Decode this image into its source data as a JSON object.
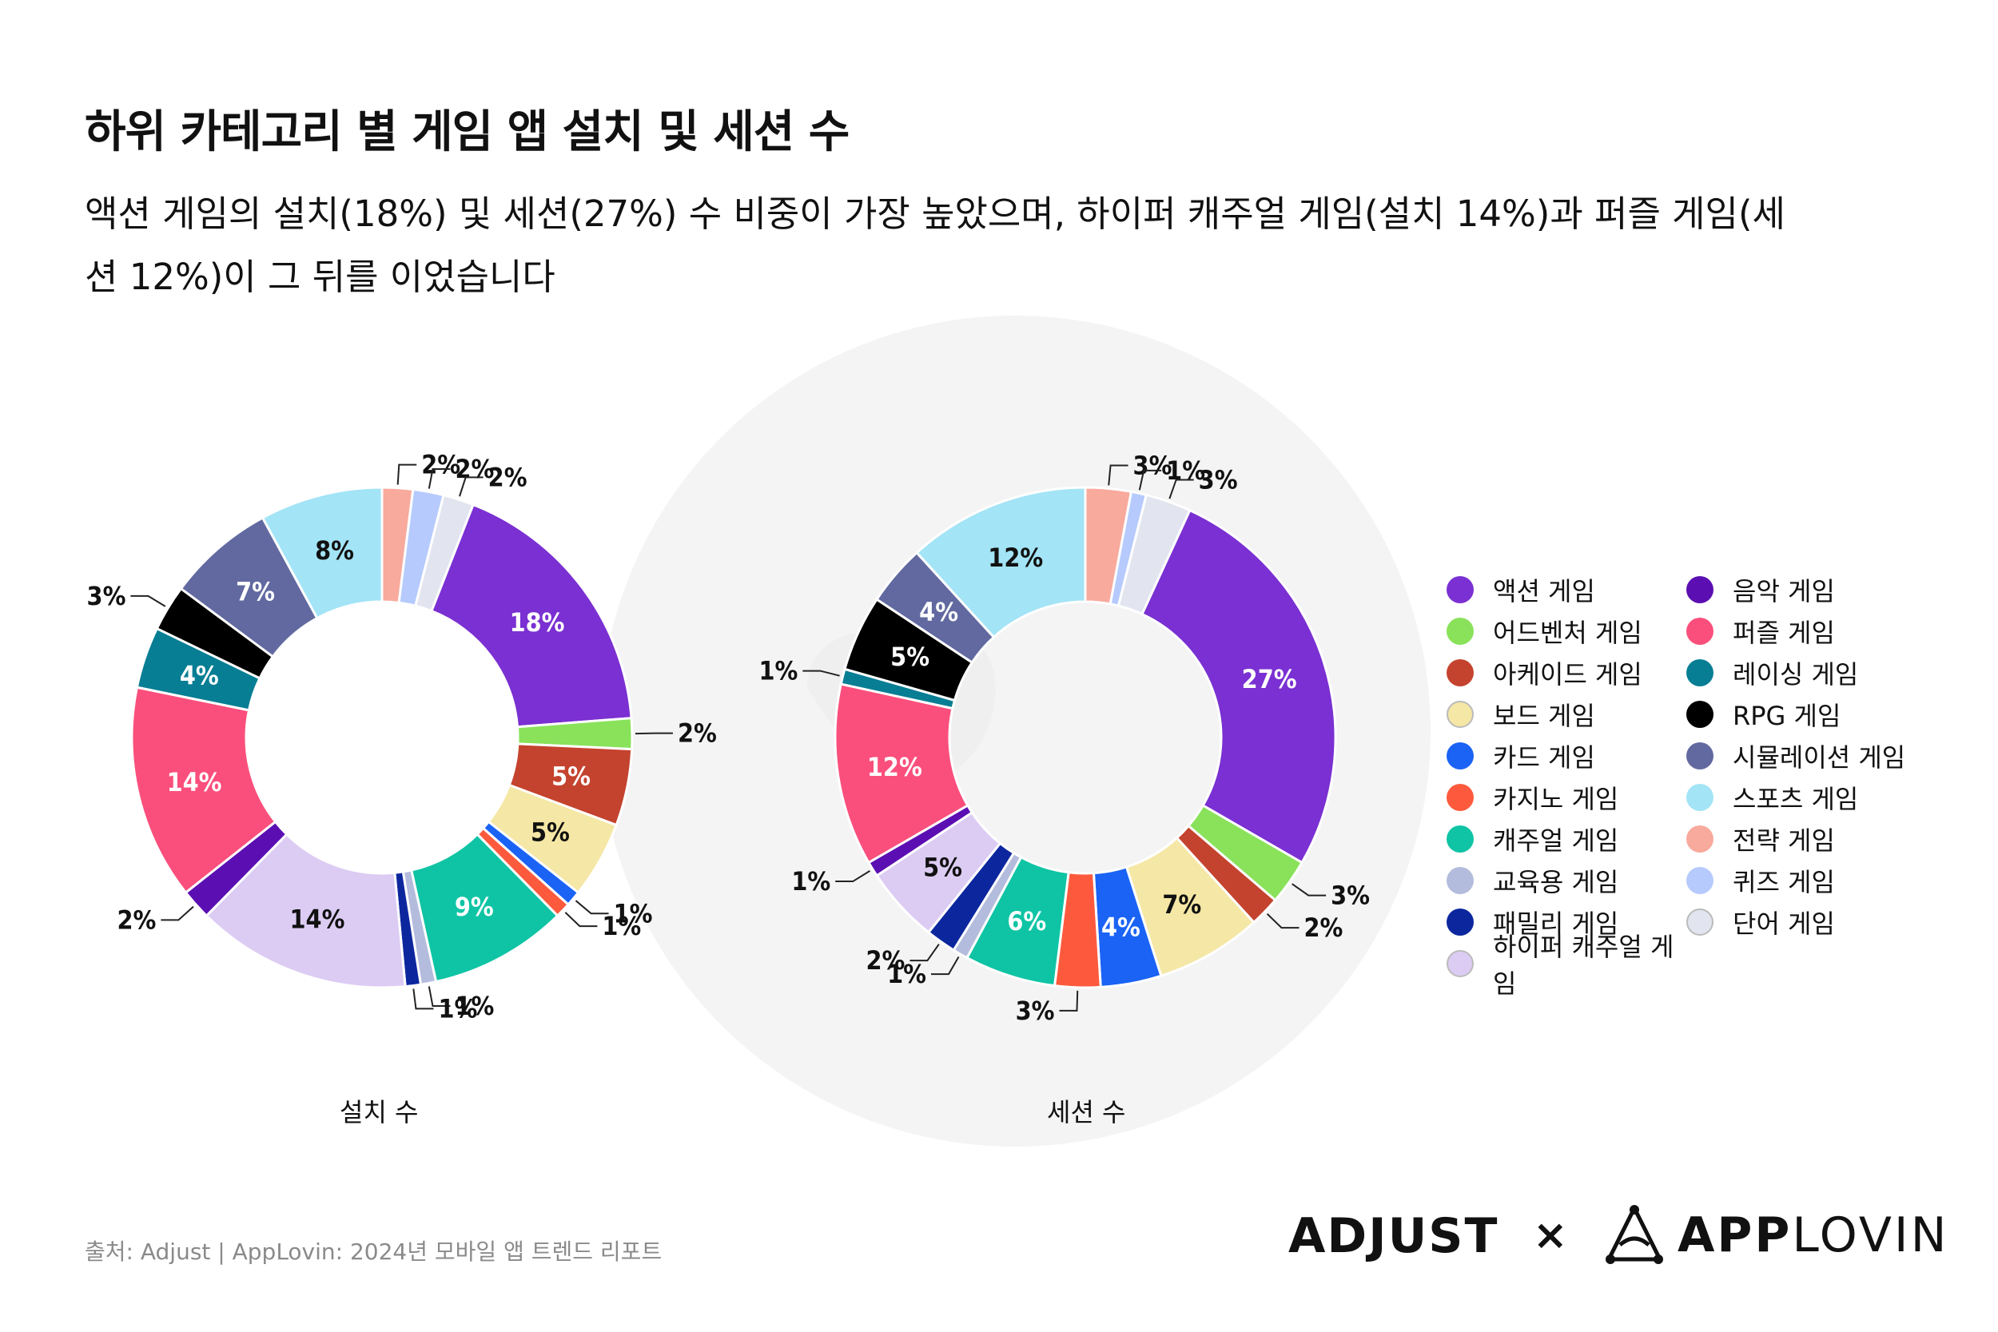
{
  "title": "하위 카테고리 별 게임 앱 설치 및 세션 수",
  "subtitle": "액션 게임의 설치(18%) 및 세션(27%) 수 비중이 가장 높았으며, 하이퍼 캐주얼 게임(설치 14%)과 퍼즐 게임(세션 12%)이 그 뒤를 이었습니다",
  "legend": [
    {
      "label": "액션 게임",
      "color": "#7a30d2"
    },
    {
      "label": "어드벤처 게임",
      "color": "#89e25a"
    },
    {
      "label": "아케이드 게임",
      "color": "#c4432e"
    },
    {
      "label": "보드 게임",
      "color": "#f5e7a5"
    },
    {
      "label": "카드 게임",
      "color": "#1a63f5"
    },
    {
      "label": "카지노 게임",
      "color": "#fd5a3d"
    },
    {
      "label": "캐주얼 게임",
      "color": "#0fc4a4"
    },
    {
      "label": "교육용 게임",
      "color": "#b3bcdc"
    },
    {
      "label": "패밀리 게임",
      "color": "#0c279e"
    },
    {
      "label": "하이퍼 캐주얼 게임",
      "color": "#dcccf3"
    },
    {
      "label": "음악 게임",
      "color": "#5b0fb2"
    },
    {
      "label": "퍼즐 게임",
      "color": "#fa4f7c"
    },
    {
      "label": "레이싱 게임",
      "color": "#077e94"
    },
    {
      "label": "RPG 게임",
      "color": "#000000"
    },
    {
      "label": "시뮬레이션 게임",
      "color": "#6169a0"
    },
    {
      "label": "스포츠 게임",
      "color": "#a3e4f6"
    },
    {
      "label": "전략 게임",
      "color": "#f8aa9d"
    },
    {
      "label": "퀴즈 게임",
      "color": "#b6cafd"
    },
    {
      "label": "단어 게임",
      "color": "#e2e5ef"
    }
  ],
  "chart_data": [
    {
      "type": "pie",
      "variant": "donut",
      "title": "설치 수",
      "categories": [
        "전략 게임",
        "퀴즈 게임",
        "단어 게임",
        "액션 게임",
        "어드벤처 게임",
        "아케이드 게임",
        "보드 게임",
        "카드 게임",
        "카지노 게임",
        "캐주얼 게임",
        "교육용 게임",
        "패밀리 게임",
        "하이퍼 캐주얼 게임",
        "음악 게임",
        "퍼즐 게임",
        "레이싱 게임",
        "RPG 게임",
        "시뮬레이션 게임",
        "스포츠 게임"
      ],
      "values": [
        2,
        2,
        2,
        18,
        2,
        5,
        5,
        1,
        1,
        9,
        1,
        1,
        14,
        2,
        14,
        4,
        3,
        7,
        8
      ],
      "labels": [
        "2%",
        "2%",
        "2%",
        "18%",
        "2%",
        "5%",
        "5%",
        "1%",
        "1%",
        "9%",
        "1%",
        "1%",
        "14%",
        "2%",
        "14%",
        "4%",
        "3%",
        "7%",
        "8%"
      ]
    },
    {
      "type": "pie",
      "variant": "donut",
      "title": "세션 수",
      "categories": [
        "전략 게임",
        "퀴즈 게임",
        "단어 게임",
        "액션 게임",
        "어드벤처 게임",
        "아케이드 게임",
        "보드 게임",
        "카드 게임",
        "카지노 게임",
        "캐주얼 게임",
        "교육용 게임",
        "패밀리 게임",
        "하이퍼 캐주얼 게임",
        "음악 게임",
        "퍼즐 게임",
        "레이싱 게임",
        "RPG 게임",
        "시뮬레이션 게임",
        "스포츠 게임"
      ],
      "values": [
        3,
        1,
        3,
        27,
        3,
        2,
        7,
        4,
        3,
        6,
        1,
        2,
        5,
        1,
        12,
        1,
        5,
        4,
        12
      ],
      "labels": [
        "3%",
        "1%",
        "3%",
        "27%",
        "3%",
        "2%",
        "7%",
        "4%",
        "3%",
        "6%",
        "1%",
        "2%",
        "5%",
        "1%",
        "12%",
        "1%",
        "5%",
        "4%",
        "12%"
      ]
    }
  ],
  "source": "출처: Adjust | AppLovin: 2024년 모바일 앱 트렌드 리포트",
  "logos": {
    "adjust": "ADJUST",
    "x": "×",
    "applovin_bold": "APP",
    "applovin_light": "LOVIN"
  }
}
